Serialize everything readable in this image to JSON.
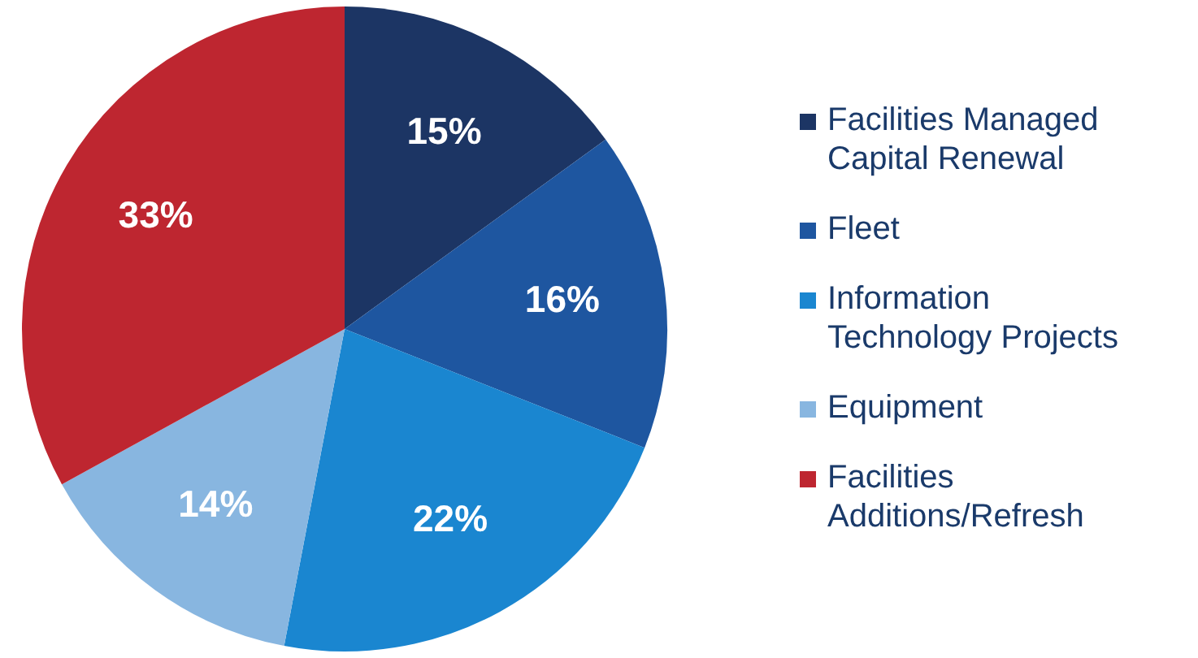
{
  "chart_data": {
    "type": "pie",
    "categories": [
      "Facilities Managed Capital Renewal",
      "Fleet",
      "Information Technology Projects",
      "Equipment",
      "Facilities Additions/Refresh"
    ],
    "values": [
      15,
      16,
      22,
      14,
      33
    ],
    "colors": [
      "#1c3564",
      "#1e56a0",
      "#1a86d0",
      "#88b6e0",
      "#be2630"
    ],
    "value_labels": [
      "15%",
      "16%",
      "22%",
      "14%",
      "33%"
    ],
    "legend": "right"
  }
}
